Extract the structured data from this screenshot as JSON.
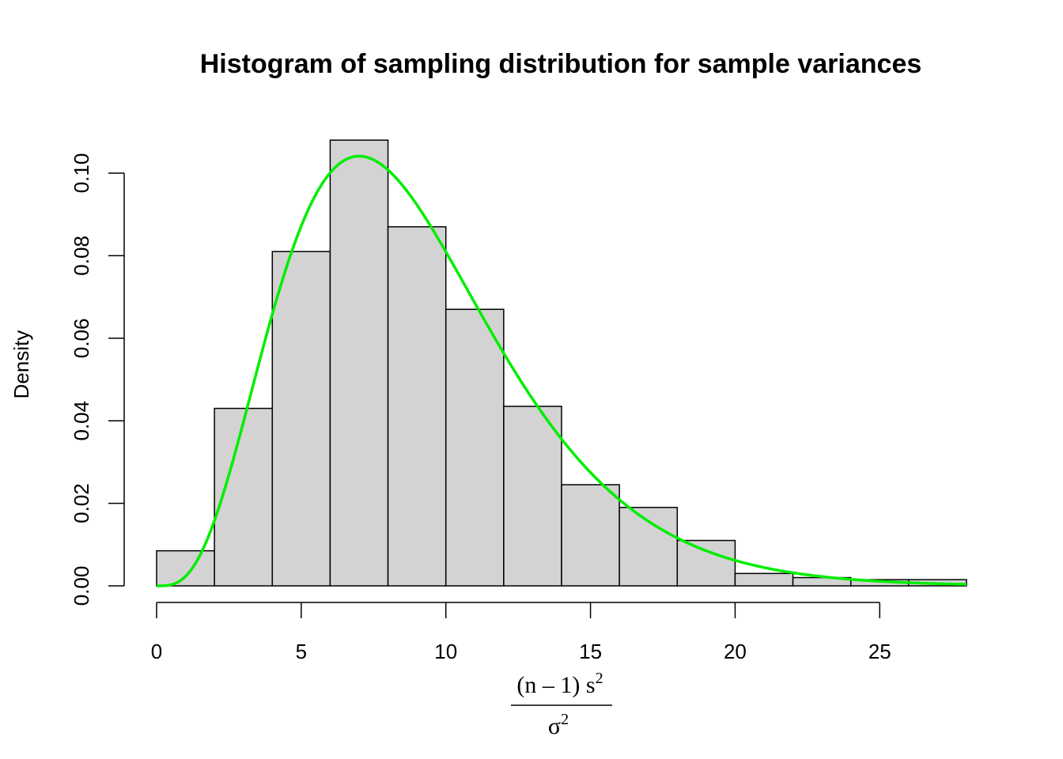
{
  "chart_data": {
    "type": "bar",
    "title": "Histogram of sampling distribution for sample variances",
    "xlabel": {
      "numerator_main": "(n – 1) s",
      "numerator_sup": "2",
      "denominator_main": "σ",
      "denominator_sup": "2"
    },
    "ylabel": "Density",
    "xlim": [
      0,
      28
    ],
    "ylim": [
      0,
      0.1
    ],
    "x_ticks": [
      0,
      5,
      10,
      15,
      20,
      25
    ],
    "x_tick_labels": [
      "0",
      "5",
      "10",
      "15",
      "20",
      "25"
    ],
    "y_ticks": [
      0,
      0.02,
      0.04,
      0.06,
      0.08,
      0.1
    ],
    "y_tick_labels": [
      "0.00",
      "0.02",
      "0.04",
      "0.06",
      "0.08",
      "0.10"
    ],
    "bins": [
      {
        "start": 0,
        "end": 2,
        "density": 0.0085
      },
      {
        "start": 2,
        "end": 4,
        "density": 0.043
      },
      {
        "start": 4,
        "end": 6,
        "density": 0.081
      },
      {
        "start": 6,
        "end": 8,
        "density": 0.108
      },
      {
        "start": 8,
        "end": 10,
        "density": 0.087
      },
      {
        "start": 10,
        "end": 12,
        "density": 0.067
      },
      {
        "start": 12,
        "end": 14,
        "density": 0.0435
      },
      {
        "start": 14,
        "end": 16,
        "density": 0.0245
      },
      {
        "start": 16,
        "end": 18,
        "density": 0.019
      },
      {
        "start": 18,
        "end": 20,
        "density": 0.011
      },
      {
        "start": 20,
        "end": 22,
        "density": 0.003
      },
      {
        "start": 22,
        "end": 24,
        "density": 0.002
      },
      {
        "start": 24,
        "end": 26,
        "density": 0.0015
      },
      {
        "start": 26,
        "end": 28,
        "density": 0.0015
      }
    ],
    "curve": {
      "type": "density",
      "distribution": "chi-squared",
      "df": 9,
      "color": "#00ee00"
    },
    "bar_fill": "#d3d3d3",
    "bar_stroke": "#000000",
    "grid": false
  }
}
